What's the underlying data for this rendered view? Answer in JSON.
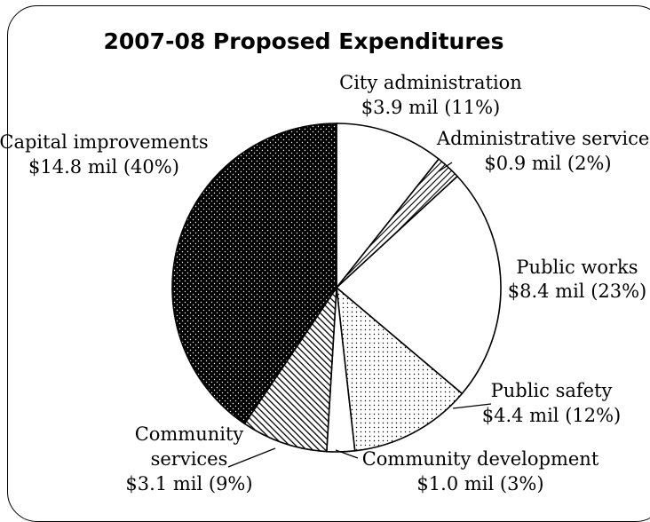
{
  "chart_data": {
    "type": "pie",
    "title": "2007-08 Proposed Expenditures",
    "slices": [
      {
        "name": "City administration",
        "value_label": "$3.9 mil (11%)",
        "value": 3.9,
        "percent": 11,
        "fill": "white"
      },
      {
        "name": "Administrative services",
        "value_label": "$0.9 mil (2%)",
        "value": 0.9,
        "percent": 2,
        "fill": "diagonal-hatch"
      },
      {
        "name": "Public works",
        "value_label": "$8.4 mil (23%)",
        "value": 8.4,
        "percent": 23,
        "fill": "white"
      },
      {
        "name": "Public safety",
        "value_label": "$4.4 mil (12%)",
        "value": 4.4,
        "percent": 12,
        "fill": "light-dots"
      },
      {
        "name": "Community development",
        "value_label": "$1.0 mil (3%)",
        "value": 1.0,
        "percent": 3,
        "fill": "white"
      },
      {
        "name": "Community services",
        "value_label": "$3.1 mil (9%)",
        "value": 3.1,
        "percent": 9,
        "fill": "dense-hatch"
      },
      {
        "name": "Capital improvements",
        "value_label": "$14.8 mil (40%)",
        "value": 14.8,
        "percent": 40,
        "fill": "dark-dots"
      }
    ]
  }
}
